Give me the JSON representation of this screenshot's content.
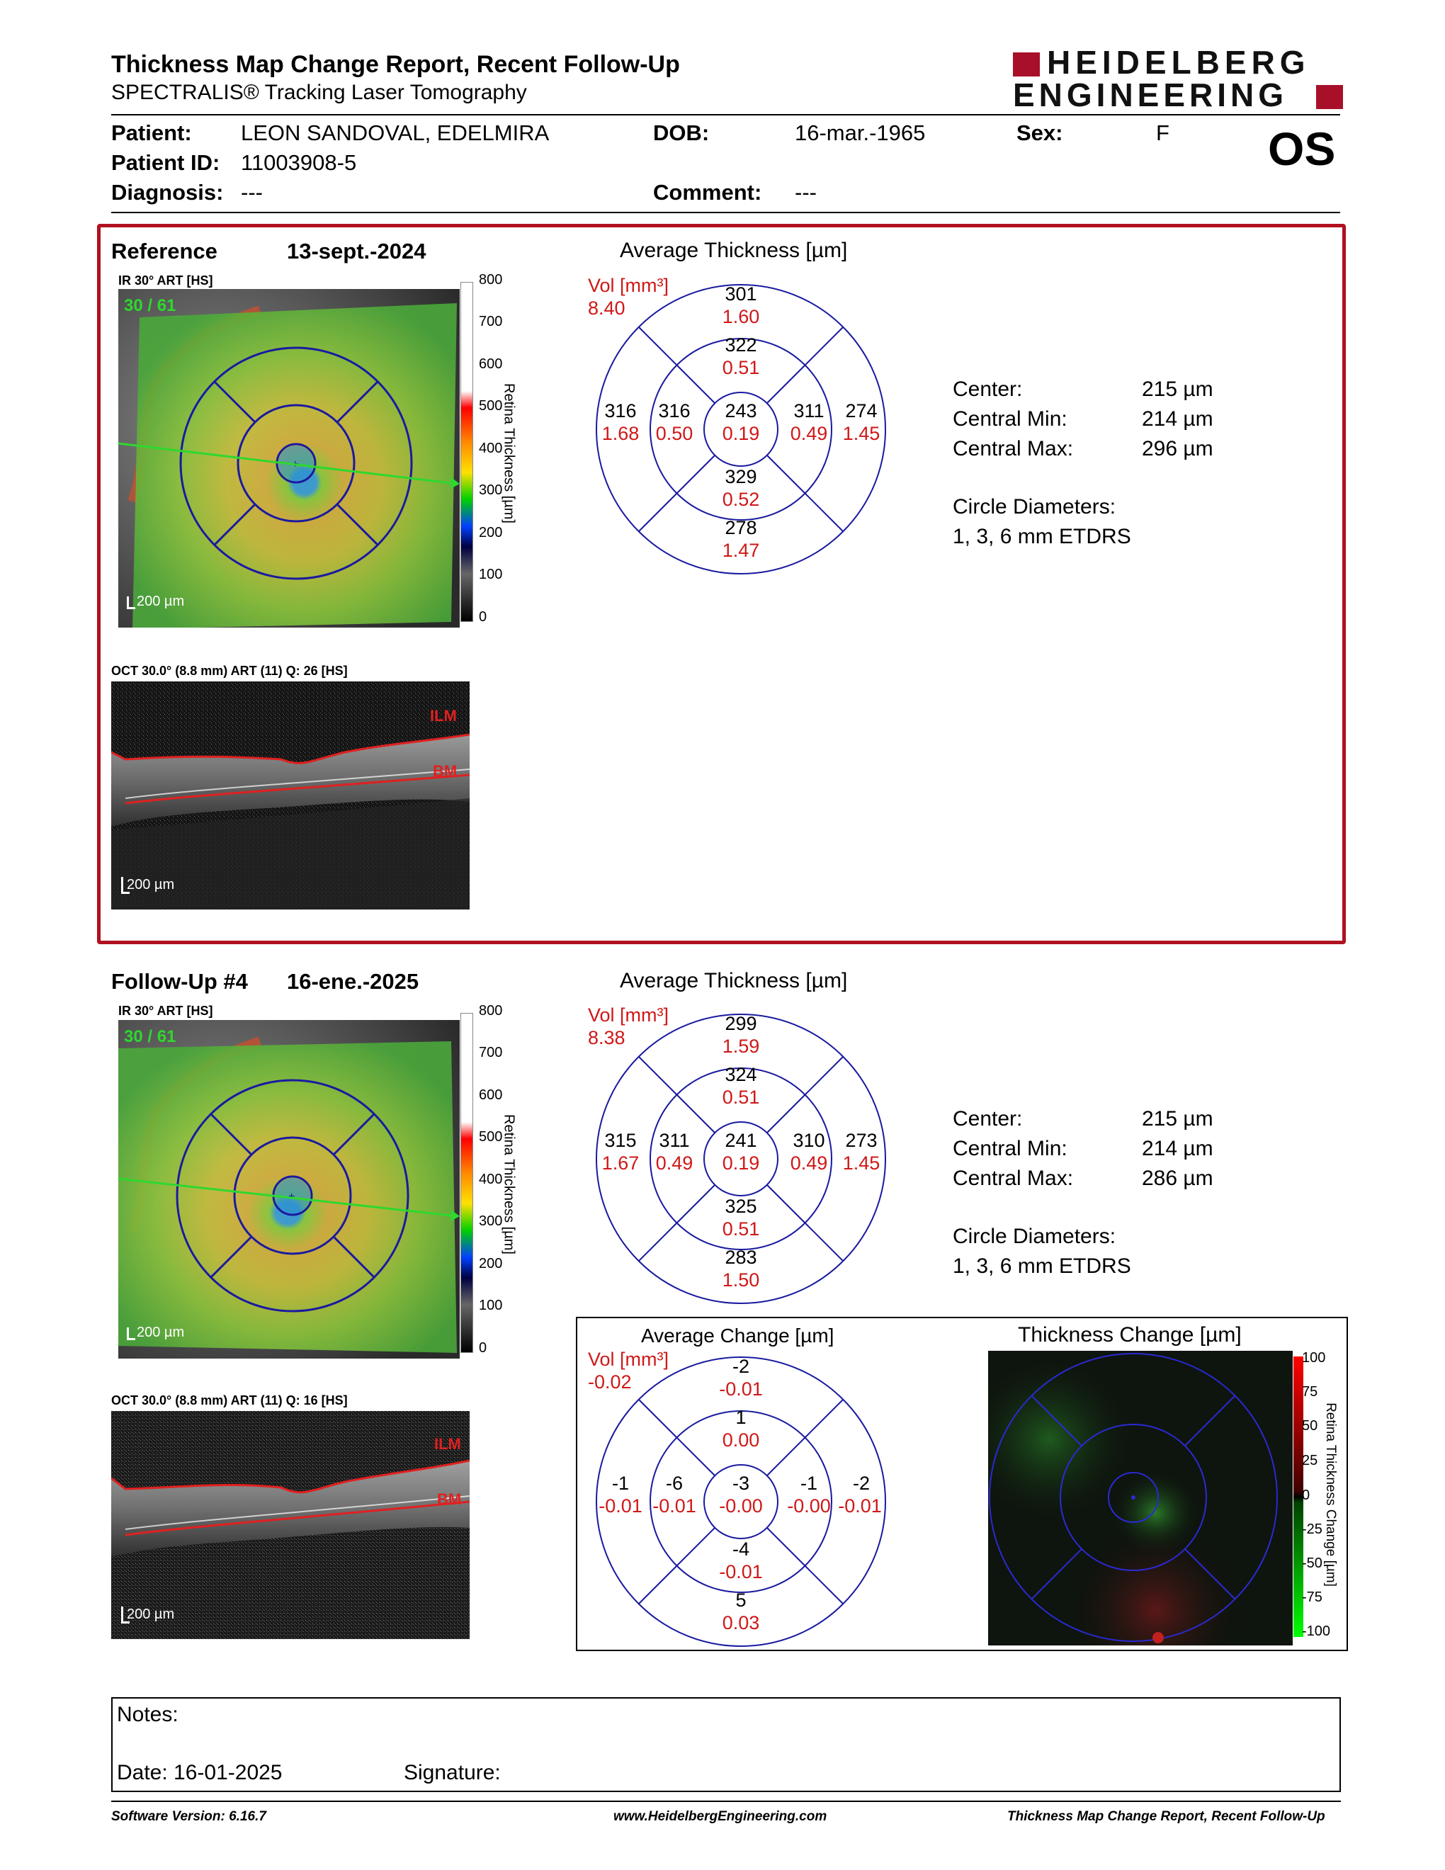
{
  "header": {
    "title": "Thickness Map Change Report, Recent Follow-Up",
    "subtitle": "SPECTRALIS® Tracking Laser Tomography",
    "logo_line1": "HEIDELBERG",
    "logo_line2": "ENGINEERING",
    "eye": "OS"
  },
  "patient": {
    "name_label": "Patient:",
    "name": "LEON SANDOVAL, EDELMIRA",
    "id_label": "Patient ID:",
    "id": "11003908-5",
    "diagnosis_label": "Diagnosis:",
    "diagnosis": "---",
    "dob_label": "DOB:",
    "dob": "16-mar.-1965",
    "sex_label": "Sex:",
    "sex": "F",
    "comment_label": "Comment:",
    "comment": "---"
  },
  "reference": {
    "label": "Reference",
    "date": "13-sept.-2024",
    "ir_caption": "IR 30° ART [HS]",
    "ir_overlay": "30 / 61",
    "scale_text": "200 µm",
    "colorbar_title": "Retina Thickness [µm]",
    "colorbar_ticks": [
      "800",
      "700",
      "600",
      "500",
      "400",
      "300",
      "200",
      "100",
      "0"
    ],
    "oct_caption": "OCT 30.0° (8.8 mm) ART (11) Q: 26 [HS]",
    "oct_ilm": "ILM",
    "oct_bm": "BM",
    "oct_scale": "200 µm",
    "grid_title": "Average Thickness [µm]",
    "vol_label": "Vol [mm³]",
    "vol_value": "8.40",
    "grid": {
      "outer_sup": [
        "301",
        "1.60"
      ],
      "inner_sup": [
        "322",
        "0.51"
      ],
      "outer_temp": [
        "316",
        "1.68"
      ],
      "inner_temp": [
        "316",
        "0.50"
      ],
      "center": [
        "243",
        "0.19"
      ],
      "inner_nasal": [
        "311",
        "0.49"
      ],
      "outer_nasal": [
        "274",
        "1.45"
      ],
      "inner_inf": [
        "329",
        "0.52"
      ],
      "outer_inf": [
        "278",
        "1.47"
      ]
    },
    "stats": [
      {
        "label": "Center:",
        "value": "215 µm"
      },
      {
        "label": "Central Min:",
        "value": "214 µm"
      },
      {
        "label": "Central Max:",
        "value": "296 µm"
      }
    ],
    "diam_label": "Circle Diameters:",
    "diam_value": "1, 3, 6 mm ETDRS"
  },
  "followup": {
    "label": "Follow-Up #4",
    "date": "16-ene.-2025",
    "ir_caption": "IR 30° ART [HS]",
    "ir_overlay": "30 / 61",
    "scale_text": "200 µm",
    "colorbar_title": "Retina Thickness [µm]",
    "colorbar_ticks": [
      "800",
      "700",
      "600",
      "500",
      "400",
      "300",
      "200",
      "100",
      "0"
    ],
    "oct_caption": "OCT 30.0° (8.8 mm) ART (11) Q: 16 [HS]",
    "oct_ilm": "ILM",
    "oct_bm": "BM",
    "oct_scale": "200 µm",
    "grid_title": "Average Thickness [µm]",
    "vol_label": "Vol [mm³]",
    "vol_value": "8.38",
    "grid": {
      "outer_sup": [
        "299",
        "1.59"
      ],
      "inner_sup": [
        "324",
        "0.51"
      ],
      "outer_temp": [
        "315",
        "1.67"
      ],
      "inner_temp": [
        "311",
        "0.49"
      ],
      "center": [
        "241",
        "0.19"
      ],
      "inner_nasal": [
        "310",
        "0.49"
      ],
      "outer_nasal": [
        "273",
        "1.45"
      ],
      "inner_inf": [
        "325",
        "0.51"
      ],
      "outer_inf": [
        "283",
        "1.50"
      ]
    },
    "stats": [
      {
        "label": "Center:",
        "value": "215 µm"
      },
      {
        "label": "Central Min:",
        "value": "214 µm"
      },
      {
        "label": "Central Max:",
        "value": "286 µm"
      }
    ],
    "diam_label": "Circle Diameters:",
    "diam_value": "1, 3, 6 mm ETDRS"
  },
  "change": {
    "grid_title": "Average Change [µm]",
    "vol_label": "Vol [mm³]",
    "vol_value": "-0.02",
    "grid": {
      "outer_sup": [
        "-2",
        "-0.01"
      ],
      "inner_sup": [
        "1",
        "0.00"
      ],
      "outer_temp": [
        "-1",
        "-0.01"
      ],
      "inner_temp": [
        "-6",
        "-0.01"
      ],
      "center": [
        "-3",
        "-0.00"
      ],
      "inner_nasal": [
        "-1",
        "-0.00"
      ],
      "outer_nasal": [
        "-2",
        "-0.01"
      ],
      "inner_inf": [
        "-4",
        "-0.01"
      ],
      "outer_inf": [
        "5",
        "0.03"
      ]
    },
    "map_title": "Thickness Change [µm]",
    "map_colorbar_title": "Retina Thickness Change [µm]",
    "map_ticks": [
      "100",
      "75",
      "50",
      "25",
      "0",
      "-25",
      "-50",
      "-75",
      "-100"
    ]
  },
  "notes": {
    "notes_label": "Notes:",
    "date_label": "Date: 16-01-2025",
    "signature_label": "Signature:"
  },
  "footer": {
    "software": "Software Version: 6.16.7",
    "url": "www.HeidelbergEngineering.com",
    "report": "Thickness Map Change Report, Recent Follow-Up"
  },
  "colors": {
    "frame_red": "#b01020",
    "grid_blue": "#1a1aa0",
    "value_red": "#d01818",
    "logo_red": "#a8102a"
  }
}
